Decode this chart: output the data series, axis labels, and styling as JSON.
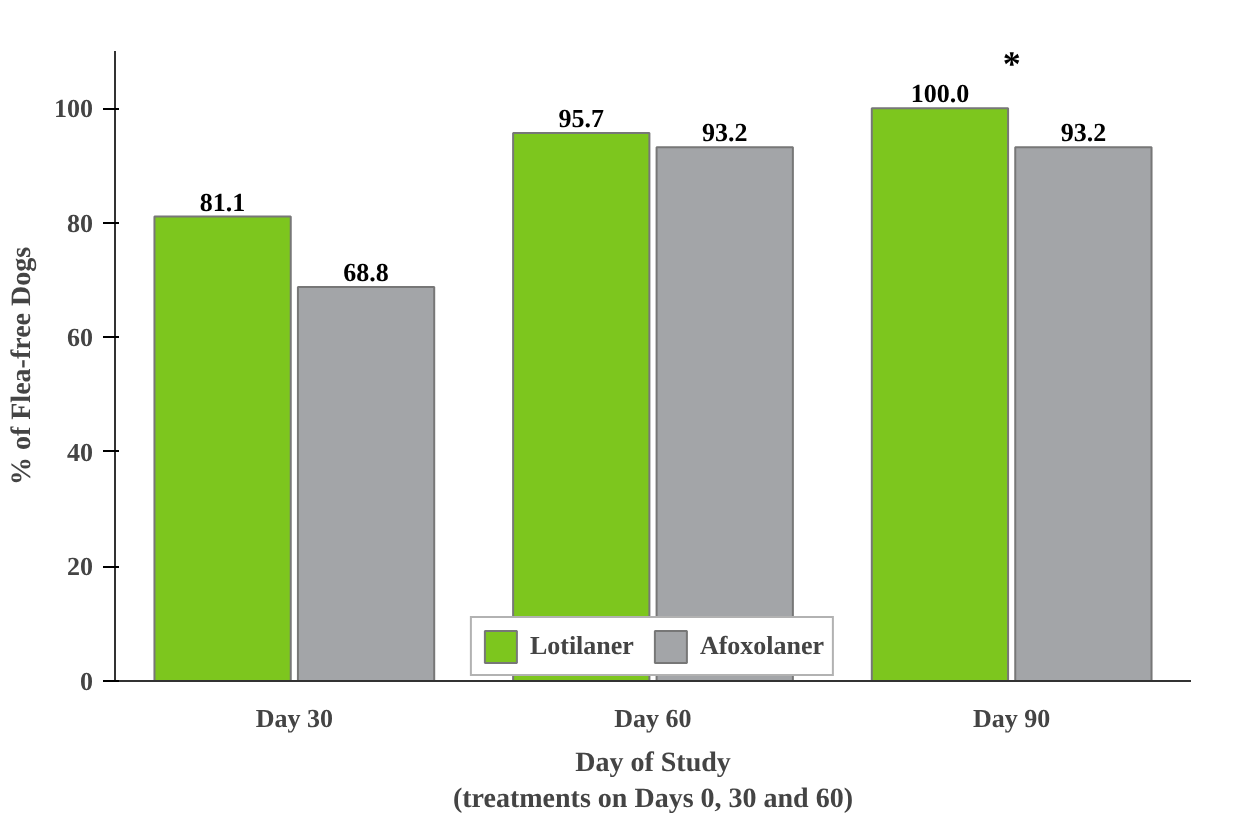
{
  "chart_data": {
    "type": "bar",
    "categories": [
      "Day 30",
      "Day 60",
      "Day 90"
    ],
    "series": [
      {
        "name": "Lotilaner",
        "color": "#7dc61e",
        "values": [
          81.1,
          95.7,
          100.0
        ],
        "value_labels": [
          "81.1",
          "95.7",
          "100.0"
        ]
      },
      {
        "name": "Afoxolaner",
        "color": "#a3a5a8",
        "values": [
          68.8,
          93.2,
          93.2
        ],
        "value_labels": [
          "68.8",
          "93.2",
          "93.2"
        ]
      }
    ],
    "ylim": [
      0,
      110
    ],
    "yticks": [
      0,
      20,
      40,
      60,
      80,
      100
    ],
    "ylabel": "% of Flea-free Dogs",
    "xlabel": "Day of Study\n(treatments on Days 0, 30 and 60)",
    "annotations": [
      {
        "text": "*",
        "x": "Day 90",
        "y": 100.0
      }
    ],
    "legend": "bottom",
    "grid": false
  }
}
